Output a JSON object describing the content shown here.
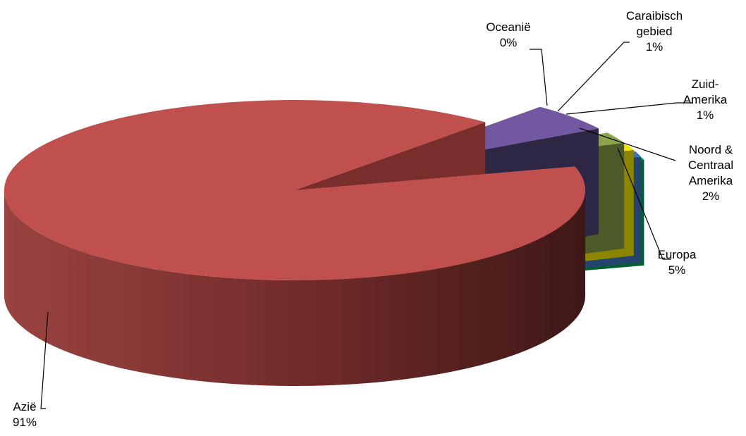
{
  "chart_data": {
    "type": "pie",
    "style": "3d-exploded",
    "slices": [
      {
        "name": "Azië",
        "pct_label": "91%",
        "value": 91,
        "color": "#C0504D",
        "side_color": "#7A2E2C"
      },
      {
        "name": "Europa",
        "pct_label": "5%",
        "value": 5,
        "color": "#7158A0",
        "side_color": "#2E2743"
      },
      {
        "name": "Noord & Centraal Amerika",
        "pct_label": "2%",
        "value": 2,
        "color": "#8CA54C",
        "side_color": "#4B5A26"
      },
      {
        "name": "Zuid-Amerika",
        "pct_label": "1%",
        "value": 1,
        "color": "#F2E600",
        "side_color": "#8C8500"
      },
      {
        "name": "Caraibisch gebied",
        "pct_label": "1%",
        "value": 1,
        "color": "#3E73B8",
        "side_color": "#24446D"
      },
      {
        "name": "Oceanië",
        "pct_label": "0%",
        "value": 0.4,
        "color": "#00A85A",
        "side_color": "#005E33"
      }
    ],
    "labels": [
      {
        "slice": "Azië",
        "lines": [
          "Azië",
          "91%"
        ]
      },
      {
        "slice": "Europa",
        "lines": [
          "Europa",
          "5%"
        ]
      },
      {
        "slice": "Noord & Centraal Amerika",
        "lines": [
          "Noord &",
          "Centraal",
          "Amerika",
          "2%"
        ]
      },
      {
        "slice": "Zuid-Amerika",
        "lines": [
          "Zuid-",
          "Amerika",
          "1%"
        ]
      },
      {
        "slice": "Caraibisch gebied",
        "lines": [
          "Caraibisch",
          "gebied",
          "1%"
        ]
      },
      {
        "slice": "Oceanië",
        "lines": [
          "Oceanië",
          "0%"
        ]
      }
    ]
  }
}
